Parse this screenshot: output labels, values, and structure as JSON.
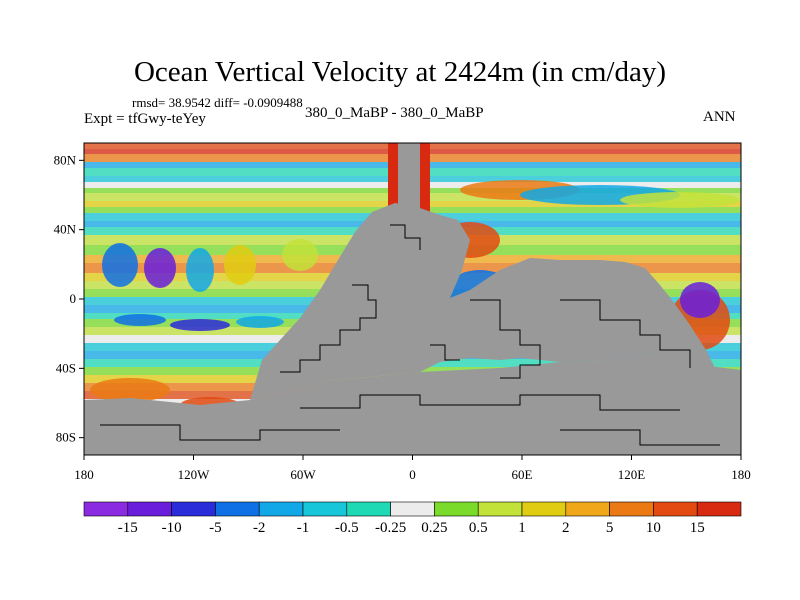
{
  "title": "Ocean Vertical Velocity at 2424m (in cm/day)",
  "stats_line": "rmsd= 38.9542 diff= -0.0909488",
  "experiment": "Expt = tfGwy-teYey",
  "subtitle": "380_0_MaBP - 380_0_MaBP",
  "season": "ANN",
  "colors": {
    "land": "#999999",
    "palette": [
      "#8a2be2",
      "#6a1edb",
      "#2b2cd9",
      "#0f70e6",
      "#12a8e8",
      "#17c6d8",
      "#1fd9b5",
      "#ececec",
      "#7adb2a",
      "#c2e23a",
      "#e0cc12",
      "#f0a81a",
      "#eb7a14",
      "#e24a12",
      "#d82a10"
    ]
  },
  "map": {
    "x_ticks": [
      "180",
      "120W",
      "60W",
      "0",
      "60E",
      "120E",
      "180"
    ],
    "y_ticks": [
      "80N",
      "40N",
      "0",
      "40S",
      "80S"
    ]
  },
  "colorbar": {
    "labels": [
      "-15",
      "-10",
      "-5",
      "-2",
      "-1",
      "-0.5",
      "-0.25",
      "0.25",
      "0.5",
      "1",
      "2",
      "5",
      "10",
      "15"
    ]
  }
}
